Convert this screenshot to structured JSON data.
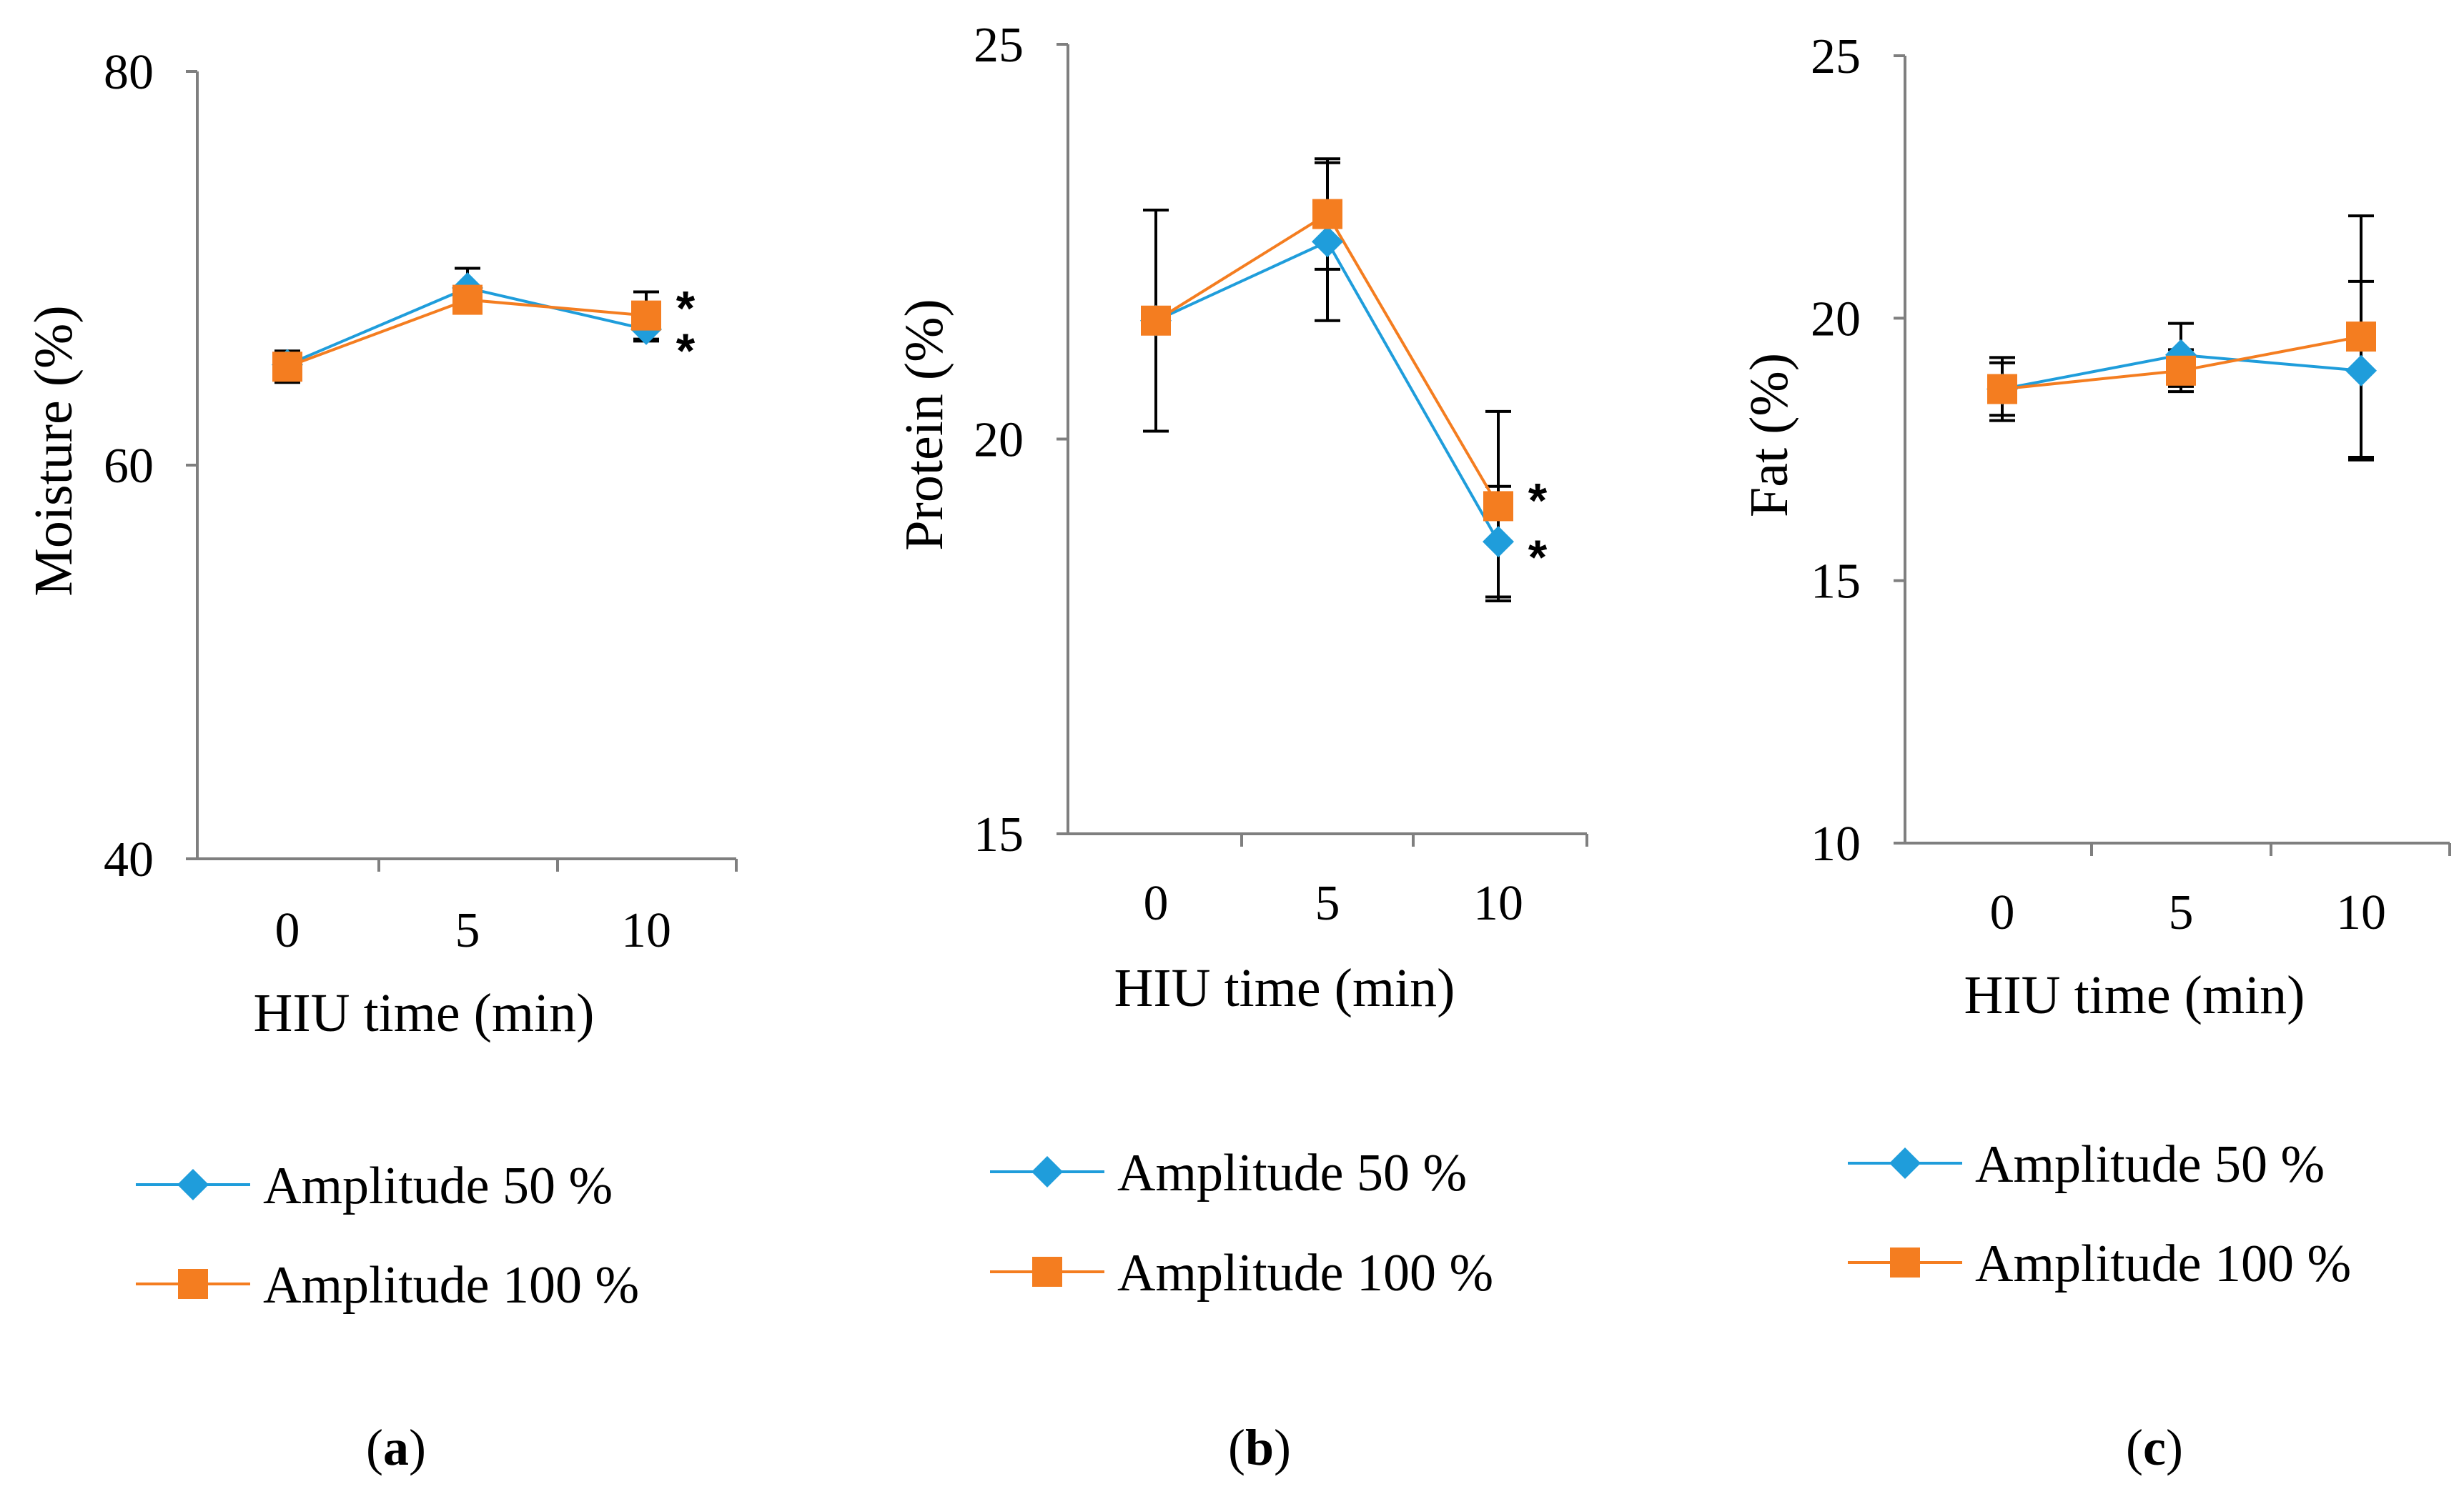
{
  "series_style": [
    {
      "name": "Amplitude 50 %",
      "color": "#1f9ddb",
      "marker": "diamond"
    },
    {
      "name": "Amplitude 100 %",
      "color": "#f47d20",
      "marker": "square"
    }
  ],
  "chart_data": [
    {
      "type": "line",
      "panel_label": "a",
      "x": [
        "0",
        "5",
        "10"
      ],
      "xlabel": "HIU time (min)",
      "ylabel": "Moisture (%)",
      "ylim": [
        40,
        80
      ],
      "yticks": [
        "40",
        "60",
        "80"
      ],
      "series": [
        {
          "name": "Amplitude 50 %",
          "values": [
            65.1,
            69.0,
            66.9
          ],
          "error": [
            0.6,
            1.0,
            0.6
          ],
          "annotation": "*"
        },
        {
          "name": "Amplitude 100 %",
          "values": [
            65.0,
            68.4,
            67.6
          ],
          "error": [
            0.8,
            0.5,
            1.2
          ],
          "annotation": "*"
        }
      ],
      "legend": [
        "Amplitude 50 %",
        "Amplitude 100 %"
      ]
    },
    {
      "type": "line",
      "panel_label": "b",
      "x": [
        "0",
        "5",
        "10"
      ],
      "xlabel": "HIU time (min)",
      "ylabel": "Protein (%)",
      "ylim": [
        15,
        25
      ],
      "yticks": [
        "15",
        "20",
        "25"
      ],
      "series": [
        {
          "name": "Amplitude 50 %",
          "values": [
            21.5,
            22.5,
            18.7
          ],
          "error": [
            1.4,
            1.0,
            0.7
          ],
          "annotation": "*"
        },
        {
          "name": "Amplitude 100 %",
          "values": [
            21.5,
            22.85,
            19.15
          ],
          "error": [
            1.4,
            0.7,
            1.2
          ],
          "annotation": "*"
        }
      ],
      "legend": [
        "Amplitude 50 %",
        "Amplitude 100 %"
      ]
    },
    {
      "type": "line",
      "panel_label": "c",
      "x": [
        "0",
        "5",
        "10"
      ],
      "xlabel": "HIU time (min)",
      "ylabel": "Fat (%)",
      "ylim": [
        10,
        25
      ],
      "yticks": [
        "10",
        "15",
        "20",
        "25"
      ],
      "series": [
        {
          "name": "Amplitude 50 %",
          "values": [
            18.65,
            19.3,
            19.0
          ],
          "error": [
            0.6,
            0.6,
            1.7
          ]
        },
        {
          "name": "Amplitude 100 %",
          "values": [
            18.65,
            19.0,
            19.65
          ],
          "error": [
            0.5,
            0.4,
            2.3
          ]
        }
      ],
      "legend": [
        "Amplitude 50 %",
        "Amplitude 100 %"
      ]
    }
  ]
}
